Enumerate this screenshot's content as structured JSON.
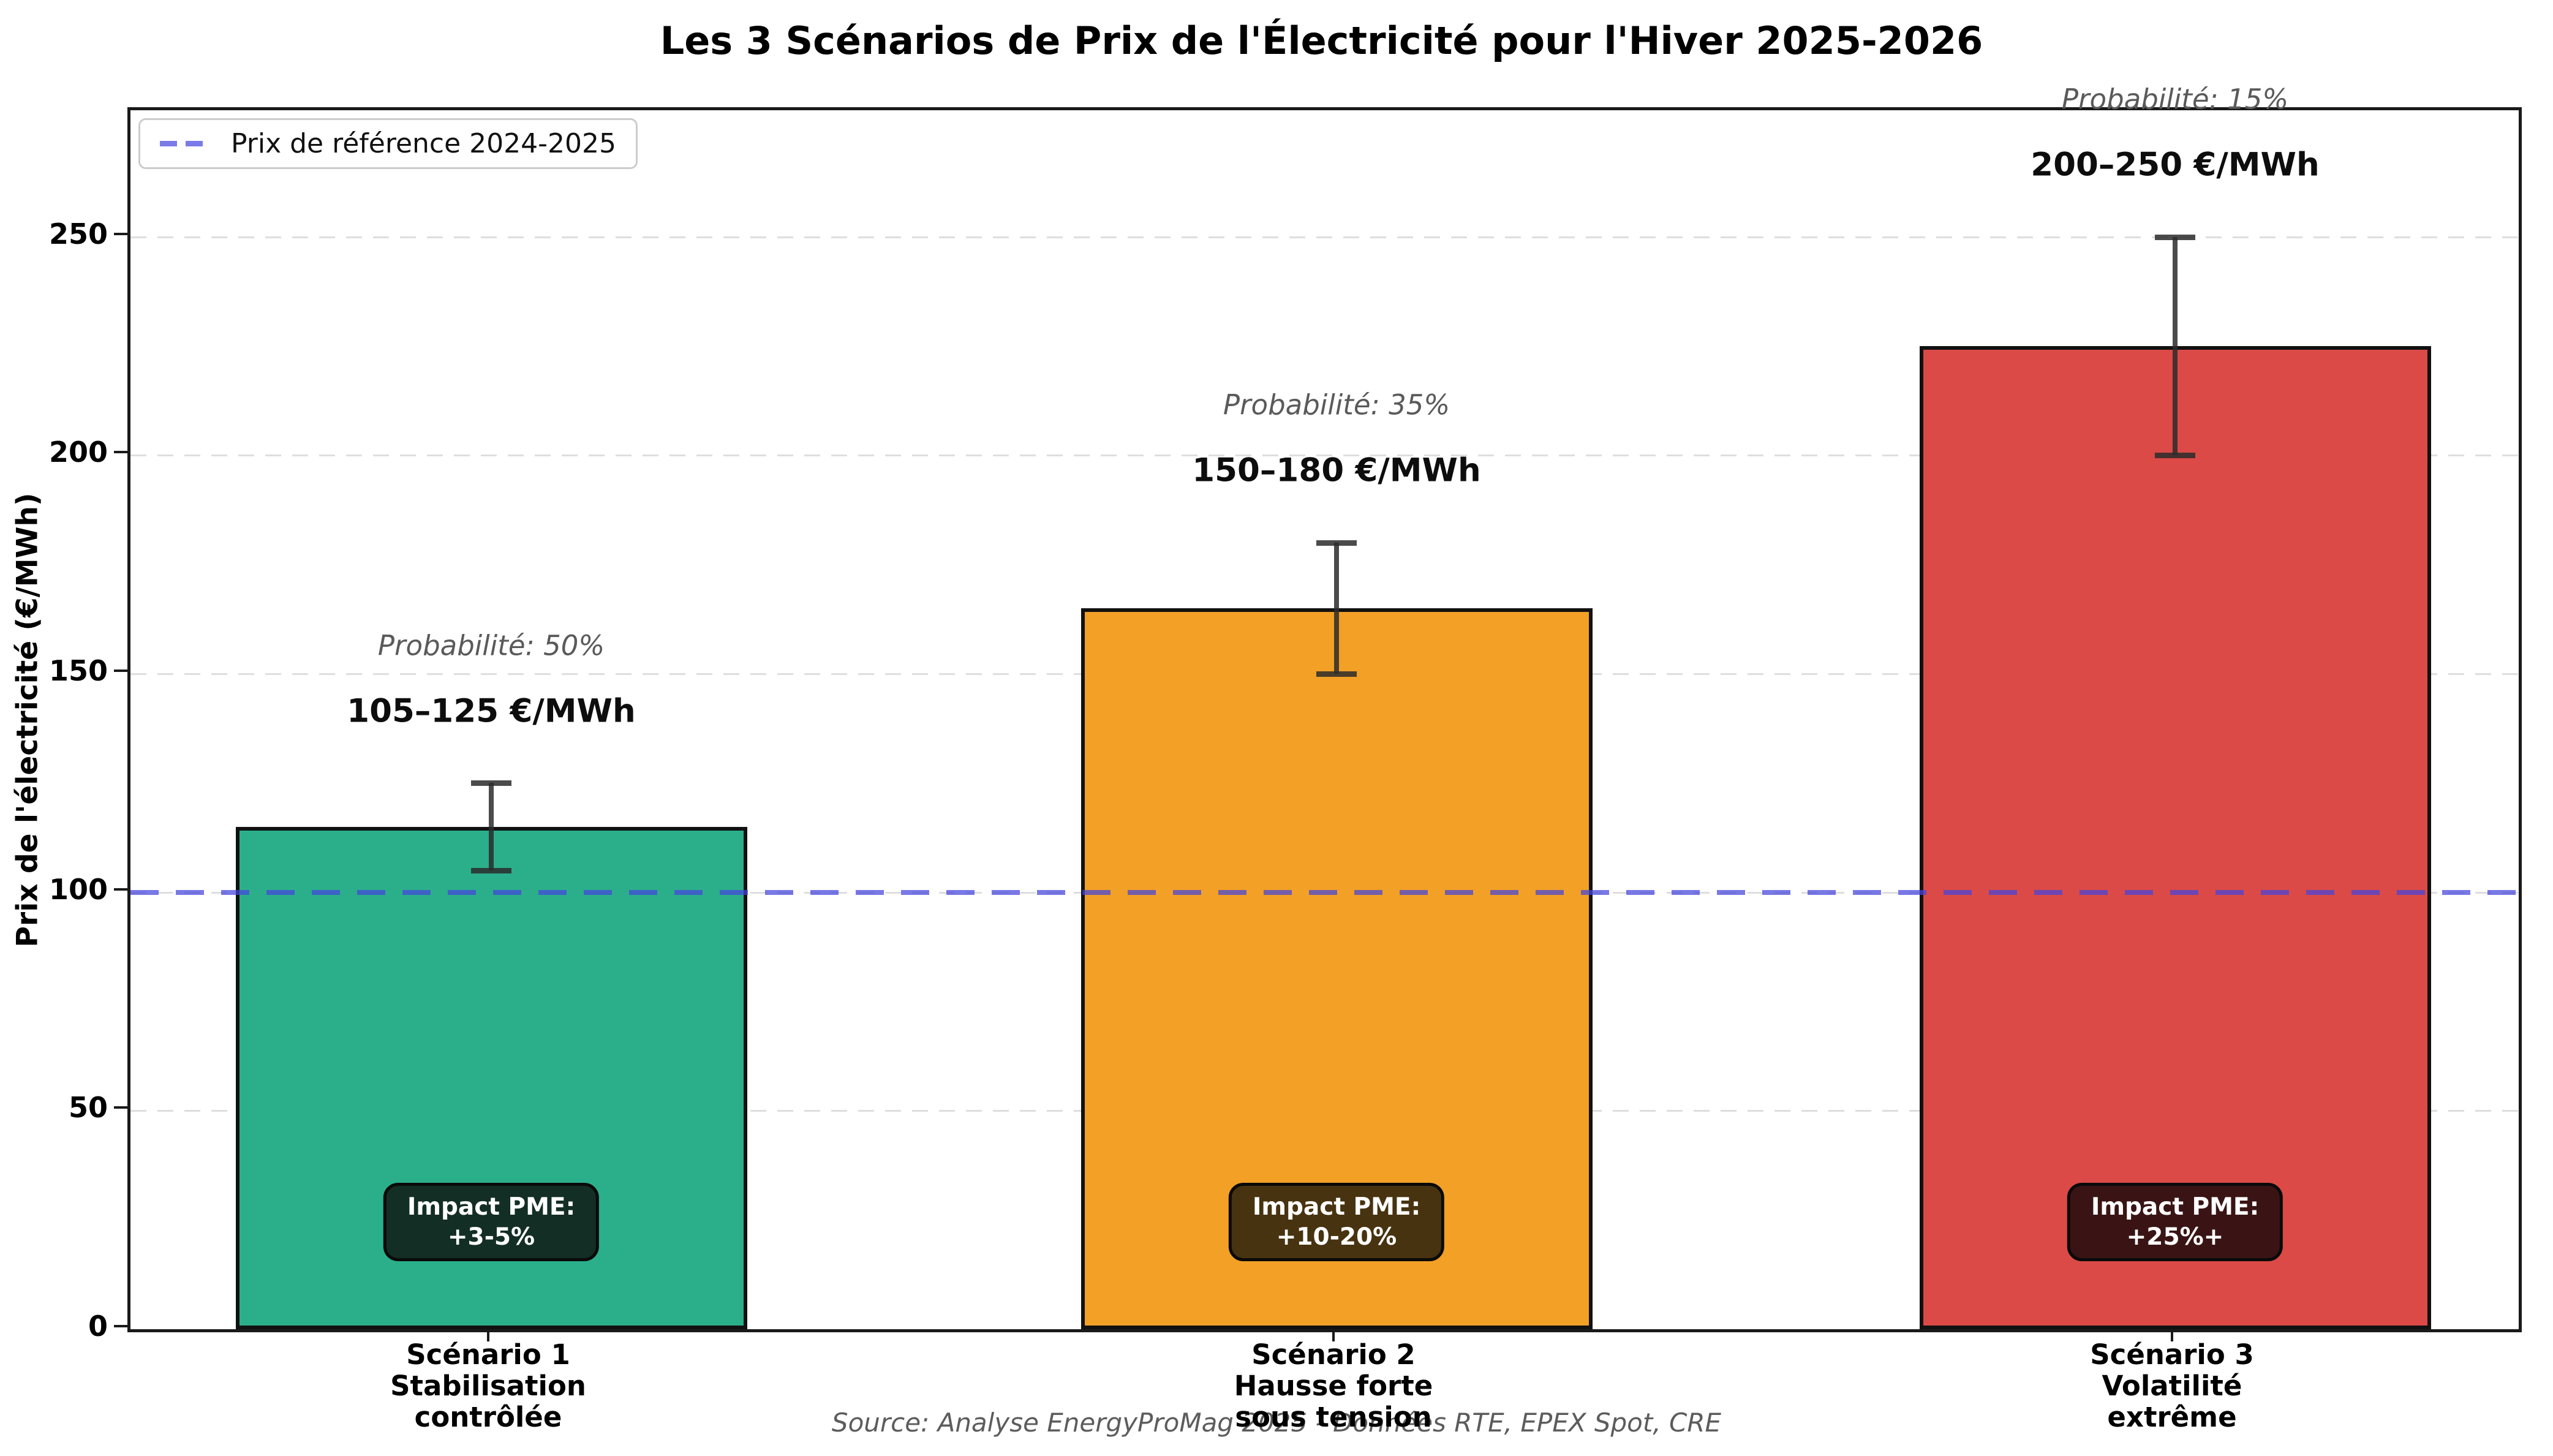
{
  "title": "Les 3 Scénarios de Prix de l'Électricité pour l'Hiver 2025-2026",
  "y_axis": {
    "label": "Prix de l'électricité (€/MWh)",
    "ticks": [
      0,
      50,
      100,
      150,
      200,
      250
    ]
  },
  "legend": {
    "label": "Prix de référence 2024-2025"
  },
  "source": "Source: Analyse EnergyProMag 2025 - Données RTE, EPEX Spot, CRE",
  "colors": {
    "reference_line": "#4444dd",
    "grid": "#dedede",
    "spine": "#1a1a1a",
    "error_bar": "#2b2b2b"
  },
  "chart_data": {
    "type": "bar",
    "title": "Les 3 Scénarios de Prix de l'Électricité pour l'Hiver 2025-2026",
    "xlabel": "",
    "ylabel": "Prix de l'électricité (€/MWh)",
    "ylim": [
      0,
      279
    ],
    "grid": "horizontal-dashed",
    "legend_position": "upper-left",
    "reference_line": {
      "value": 100,
      "label": "Prix de référence 2024-2025",
      "color": "#4444dd",
      "style": "dashed"
    },
    "categories": [
      "Scénario 1 Stabilisation contrôlée",
      "Scénario 2 Hausse forte sous tension",
      "Scénario 3 Volatilité extrême"
    ],
    "bars": [
      {
        "name": "Scénario 1",
        "label_lines": [
          "Scénario 1",
          "Stabilisation",
          "contrôlée"
        ],
        "value": 115,
        "error_low": 105,
        "error_high": 125,
        "range_label": "105–125 €/MWh",
        "probability_percent": 50,
        "probability_label": "Probabilité: 50%",
        "impact_lines": [
          "Impact PME:",
          "+3-5%"
        ],
        "color": "#2baf8b",
        "badge_color": "#132e25"
      },
      {
        "name": "Scénario 2",
        "label_lines": [
          "Scénario 2",
          "Hausse forte",
          "sous tension"
        ],
        "value": 165,
        "error_low": 150,
        "error_high": 180,
        "range_label": "150–180 €/MWh",
        "probability_percent": 35,
        "probability_label": "Probabilité: 35%",
        "impact_lines": [
          "Impact PME:",
          "+10-20%"
        ],
        "color": "#f2a026",
        "badge_color": "#483310"
      },
      {
        "name": "Scénario 3",
        "label_lines": [
          "Scénario 3",
          "Volatilité",
          "extrême"
        ],
        "value": 225,
        "error_low": 200,
        "error_high": 250,
        "range_label": "200–250 €/MWh",
        "probability_percent": 15,
        "probability_label": "Probabilité: 15%",
        "impact_lines": [
          "Impact PME:",
          "+25%+"
        ],
        "color": "#db4a46",
        "badge_color": "#3a1414"
      }
    ]
  }
}
